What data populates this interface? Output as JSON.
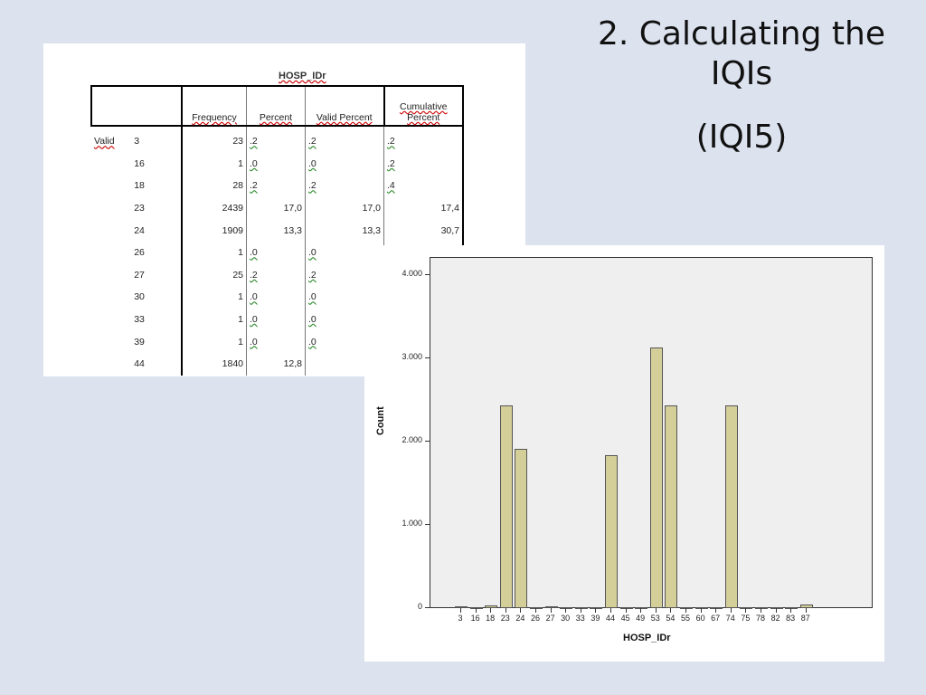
{
  "slide": {
    "title_line1": "2. Calculating the",
    "title_line2": "IQIs",
    "subtitle": "(IQI5)",
    "background": "#dce3ef"
  },
  "table": {
    "title": "HOSP_IDr",
    "headers": [
      "",
      "",
      "Frequency",
      "Percent",
      "Valid Percent",
      "Cumulative Percent"
    ],
    "cumulative_header_line1": "Cumulative",
    "cumulative_header_line2": "Percent",
    "group_label": "Valid",
    "rows": [
      {
        "id": "3",
        "frequency": "23",
        "percent": ".2",
        "valid_percent": ".2",
        "cumulative_percent": ".2"
      },
      {
        "id": "16",
        "frequency": "1",
        "percent": ".0",
        "valid_percent": ".0",
        "cumulative_percent": ".2"
      },
      {
        "id": "18",
        "frequency": "28",
        "percent": ".2",
        "valid_percent": ".2",
        "cumulative_percent": ".4"
      },
      {
        "id": "23",
        "frequency": "2439",
        "percent": "17,0",
        "valid_percent": "17,0",
        "cumulative_percent": "17,4"
      },
      {
        "id": "24",
        "frequency": "1909",
        "percent": "13,3",
        "valid_percent": "13,3",
        "cumulative_percent": "30,7"
      },
      {
        "id": "26",
        "frequency": "1",
        "percent": ".0",
        "valid_percent": ".0",
        "cumulative_percent": ""
      },
      {
        "id": "27",
        "frequency": "25",
        "percent": ".2",
        "valid_percent": ".2",
        "cumulative_percent": ""
      },
      {
        "id": "30",
        "frequency": "1",
        "percent": ".0",
        "valid_percent": ".0",
        "cumulative_percent": ""
      },
      {
        "id": "33",
        "frequency": "1",
        "percent": ".0",
        "valid_percent": ".0",
        "cumulative_percent": ""
      },
      {
        "id": "39",
        "frequency": "1",
        "percent": ".0",
        "valid_percent": ".0",
        "cumulative_percent": ""
      },
      {
        "id": "44",
        "frequency": "1840",
        "percent": "12,8",
        "valid_percent": "12,",
        "cumulative_percent": ""
      }
    ]
  },
  "chart_data": {
    "type": "bar",
    "title": "",
    "xlabel": "HOSP_IDr",
    "ylabel": "Count",
    "ylim": [
      0,
      4200
    ],
    "yticks": [
      "0",
      "1.000",
      "2.000",
      "3.000",
      "4.000"
    ],
    "grid": false,
    "categories": [
      "3",
      "16",
      "18",
      "23",
      "24",
      "26",
      "27",
      "30",
      "33",
      "39",
      "44",
      "45",
      "49",
      "53",
      "54",
      "55",
      "60",
      "67",
      "74",
      "75",
      "78",
      "82",
      "83",
      "87"
    ],
    "values": [
      23,
      1,
      28,
      2439,
      1909,
      1,
      25,
      1,
      1,
      1,
      1840,
      1,
      1,
      3130,
      2440,
      1,
      5,
      12,
      2440,
      1,
      1,
      1,
      1,
      45
    ],
    "bar_color": "#d4cf98",
    "plot_background": "#efefef"
  }
}
